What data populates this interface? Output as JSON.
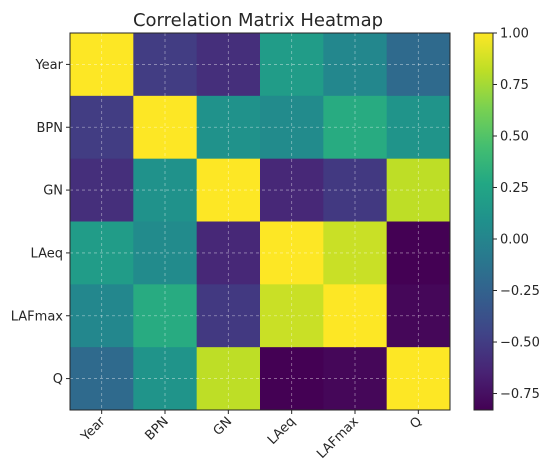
{
  "chart_data": {
    "type": "heatmap",
    "title": "Correlation Matrix Heatmap",
    "xlabel": "",
    "ylabel": "",
    "rows": [
      "Year",
      "BPN",
      "GN",
      "LAeq",
      "LAFmax",
      "Q"
    ],
    "columns": [
      "Year",
      "BPN",
      "GN",
      "LAeq",
      "LAFmax",
      "Q"
    ],
    "values": [
      [
        1.0,
        -0.5,
        -0.58,
        0.18,
        0.02,
        -0.2
      ],
      [
        -0.5,
        1.0,
        0.1,
        0.05,
        0.3,
        0.12
      ],
      [
        -0.58,
        0.1,
        1.0,
        -0.62,
        -0.52,
        0.82
      ],
      [
        0.18,
        0.05,
        -0.62,
        1.0,
        0.85,
        -0.83
      ],
      [
        0.02,
        0.3,
        -0.52,
        0.85,
        1.0,
        -0.8
      ],
      [
        -0.2,
        0.12,
        0.82,
        -0.83,
        -0.8,
        1.0
      ]
    ],
    "colormap": "viridis",
    "value_range": [
      -0.83,
      1.0
    ],
    "colorbar_ticks": [
      "1.00",
      "0.75",
      "0.50",
      "0.25",
      "0.00",
      "−0.25",
      "−0.50",
      "−0.75"
    ],
    "grid": true,
    "colorbar_position": "right"
  }
}
